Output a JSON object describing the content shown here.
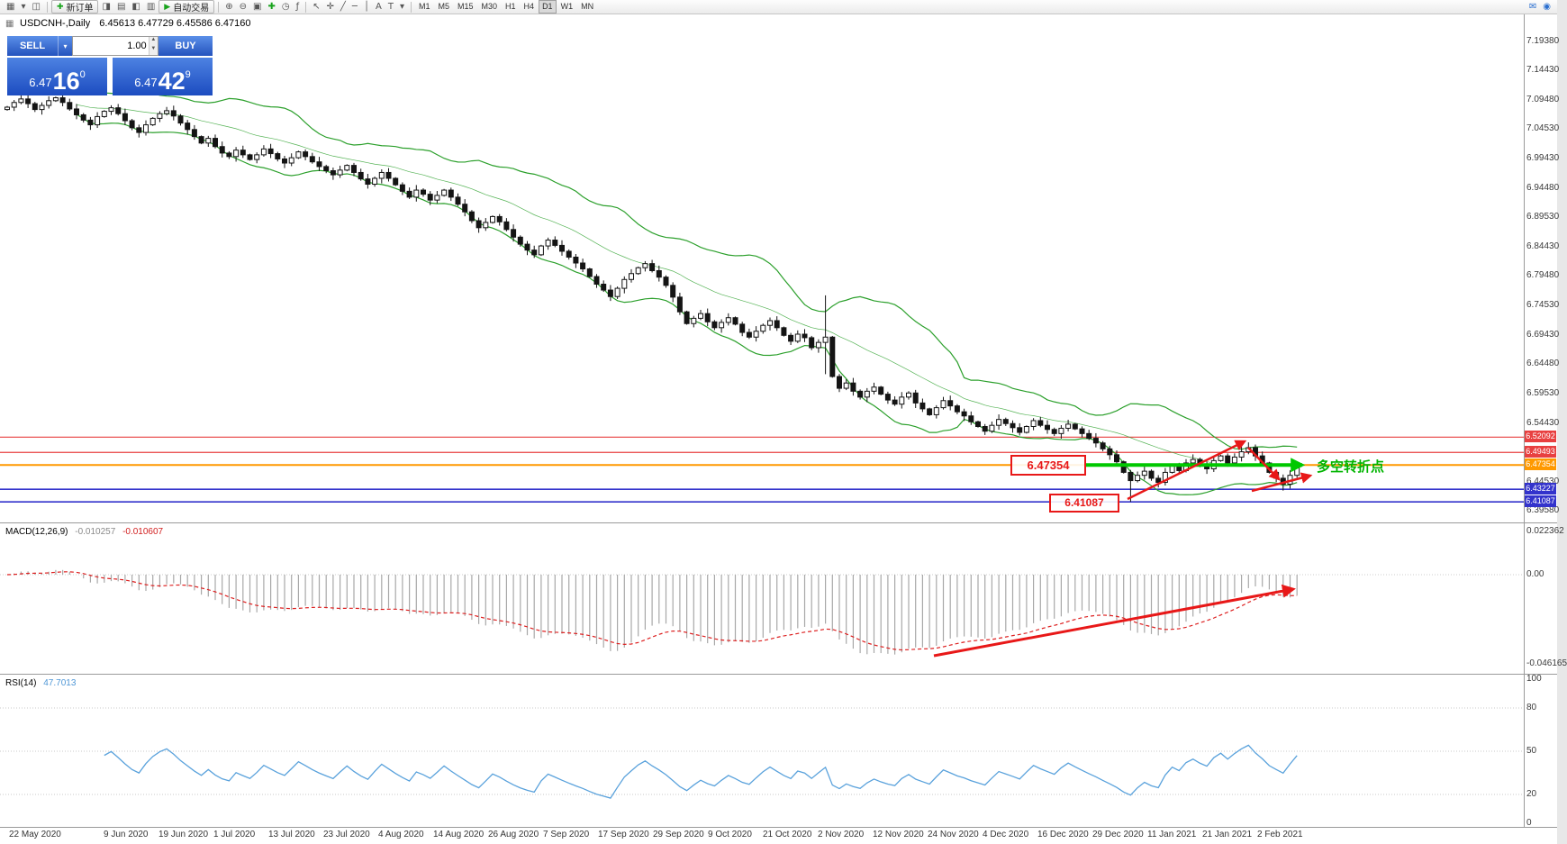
{
  "toolbar": {
    "items": [
      {
        "type": "icon",
        "glyph": "▦",
        "name": "new-chart-icon"
      },
      {
        "type": "icon",
        "glyph": "▾",
        "name": "chart-dropdown-icon"
      },
      {
        "type": "icon",
        "glyph": "◫",
        "name": "profiles-icon"
      },
      {
        "type": "sep"
      },
      {
        "type": "button",
        "glyph": "✚",
        "glyph_color": "#18a31c",
        "label": "新订单",
        "name": "new-order-button"
      },
      {
        "type": "icon",
        "glyph": "◨",
        "name": "market-watch-icon"
      },
      {
        "type": "icon",
        "glyph": "▤",
        "name": "data-window-icon"
      },
      {
        "type": "icon",
        "glyph": "◧",
        "name": "navigator-icon"
      },
      {
        "type": "icon",
        "glyph": "▥",
        "name": "terminal-icon"
      },
      {
        "type": "button",
        "glyph": "▶",
        "glyph_color": "#18a31c",
        "label": "自动交易",
        "name": "autotrading-button"
      },
      {
        "type": "sep"
      },
      {
        "type": "icon",
        "glyph": "⊕",
        "name": "zoom-in-icon"
      },
      {
        "type": "icon",
        "glyph": "⊖",
        "name": "zoom-out-icon"
      },
      {
        "type": "icon",
        "glyph": "▣",
        "name": "tile-windows-icon"
      },
      {
        "type": "icon",
        "glyph": "✚",
        "color": "#18a31c",
        "name": "new-window-icon"
      },
      {
        "type": "icon",
        "glyph": "◷",
        "name": "autoscroll-icon"
      },
      {
        "type": "icon",
        "glyph": "ƒ",
        "name": "indicators-icon"
      },
      {
        "type": "sep"
      },
      {
        "type": "icon",
        "glyph": "↖",
        "name": "cursor-icon"
      },
      {
        "type": "icon",
        "glyph": "✛",
        "name": "crosshair-icon"
      },
      {
        "type": "icon",
        "glyph": "╱",
        "name": "trendline-icon"
      },
      {
        "type": "icon",
        "glyph": "─",
        "name": "horizontal-line-icon"
      },
      {
        "type": "icon",
        "glyph": "│",
        "name": "vertical-line-icon"
      },
      {
        "type": "icon",
        "glyph": "A",
        "name": "text-tool-icon"
      },
      {
        "type": "icon",
        "glyph": "T",
        "name": "label-tool-icon"
      },
      {
        "type": "icon",
        "glyph": "▾",
        "name": "arrows-dropdown-icon"
      },
      {
        "type": "sep"
      },
      {
        "type": "tf",
        "label": "M1"
      },
      {
        "type": "tf",
        "label": "M5"
      },
      {
        "type": "tf",
        "label": "M15"
      },
      {
        "type": "tf",
        "label": "M30"
      },
      {
        "type": "tf",
        "label": "H1"
      },
      {
        "type": "tf",
        "label": "H4"
      },
      {
        "type": "tf",
        "label": "D1",
        "active": true
      },
      {
        "type": "tf",
        "label": "W1"
      },
      {
        "type": "tf",
        "label": "MN"
      },
      {
        "type": "spacer"
      },
      {
        "type": "icon",
        "glyph": "✉",
        "color": "#2a6fd0",
        "name": "mail-icon"
      },
      {
        "type": "icon",
        "glyph": "◉",
        "color": "#2a6fd0",
        "name": "community-icon"
      }
    ]
  },
  "chart_header": {
    "symbol": "USDCNH-,Daily",
    "ohlc": "6.45613 6.47729 6.45586 6.47160"
  },
  "trade_panel": {
    "sell_label": "SELL",
    "buy_label": "BUY",
    "volume": "1.00",
    "sell_price": {
      "prefix": "6.47",
      "big": "16",
      "sup": "0"
    },
    "buy_price": {
      "prefix": "6.47",
      "big": "42",
      "sup": "9"
    }
  },
  "price_scale": {
    "ticks": [
      "7.19380",
      "7.14430",
      "7.09480",
      "7.04530",
      "6.99430",
      "6.94480",
      "6.89530",
      "6.84430",
      "6.79480",
      "6.74530",
      "6.69430",
      "6.64480",
      "6.59530",
      "6.54430",
      "6.44530",
      "6.39580"
    ]
  },
  "macd_panel": {
    "label": "MACD(12,26,9)",
    "value_main": "-0.010257",
    "value_signal": "-0.010607",
    "scale": [
      "0.022362",
      "0.00",
      "-0.046165"
    ]
  },
  "rsi_panel": {
    "label": "RSI(14)",
    "value": "47.7013",
    "scale": [
      "100",
      "80",
      "50",
      "20",
      "0"
    ]
  },
  "x_axis": {
    "labels": [
      "22 May 2020",
      "9 Jun 2020",
      "19 Jun 2020",
      "1 Jul 2020",
      "13 Jul 2020",
      "23 Jul 2020",
      "4 Aug 2020",
      "14 Aug 2020",
      "26 Aug 2020",
      "7 Sep 2020",
      "17 Sep 2020",
      "29 Sep 2020",
      "9 Oct 2020",
      "21 Oct 2020",
      "2 Nov 2020",
      "12 Nov 2020",
      "24 Nov 2020",
      "4 Dec 2020",
      "16 Dec 2020",
      "29 Dec 2020",
      "11 Jan 2021",
      "21 Jan 2021",
      "2 Feb 2021"
    ]
  },
  "annotations": {
    "level_box_1": "6.47354",
    "level_box_2": "6.41087",
    "turning_point": "多空转折点"
  },
  "colors": {
    "bull": "#ffffff",
    "bear": "#141414",
    "bollinger": "#2ca02c",
    "level_red": "#e84040",
    "level_orange": "#ff9900",
    "level_blue": "#3333cc",
    "green_arrow": "#00c800",
    "red_arrow": "#e81818",
    "macd_hist": "#a8a8a8",
    "macd_signal": "#dd2020",
    "rsi_line": "#5aa2dc"
  },
  "chart_data": {
    "type": "candlestick",
    "symbol": "USDCNH-",
    "timeframe": "Daily",
    "ohlc_header": {
      "open": "6.45613",
      "high": "6.47729",
      "low": "6.45586",
      "close": "6.47160"
    },
    "price_axis": {
      "min": 6.3958,
      "max": 7.1938
    },
    "indicators": {
      "bollinger": {
        "period": 20,
        "deviation": 2
      },
      "macd": {
        "fast": 12,
        "slow": 26,
        "signal": 9,
        "main_value": -0.010257,
        "signal_value": -0.010607,
        "scale_max": 0.022362,
        "scale_min": -0.046165
      },
      "rsi": {
        "period": 14,
        "value": 47.7013,
        "levels": [
          100,
          80,
          50,
          20,
          0
        ]
      }
    },
    "levels": [
      {
        "price": 6.52092,
        "label": "6.52092",
        "color": "#e84040",
        "width": 1.2
      },
      {
        "price": 6.49493,
        "label": "6.49493",
        "color": "#e84040",
        "width": 1.2
      },
      {
        "price": 6.47354,
        "label": "6.47354",
        "color": "#ff9900",
        "width": 2
      },
      {
        "price": 6.43227,
        "label": "6.43227",
        "color": "#3333cc",
        "width": 1.6
      },
      {
        "price": 6.41087,
        "label": "6.41087",
        "color": "#3333cc",
        "width": 1.6
      }
    ],
    "candles": {
      "first_open": 7.078,
      "closes": [
        7.082,
        7.09,
        7.096,
        7.088,
        7.078,
        7.085,
        7.093,
        7.098,
        7.09,
        7.079,
        7.069,
        7.06,
        7.052,
        7.066,
        7.075,
        7.081,
        7.071,
        7.059,
        7.047,
        7.039,
        7.052,
        7.063,
        7.071,
        7.076,
        7.067,
        7.055,
        7.044,
        7.032,
        7.021,
        7.029,
        7.015,
        7.004,
        6.998,
        7.009,
        7.001,
        6.993,
        7.001,
        7.011,
        7.003,
        6.994,
        6.987,
        6.996,
        7.006,
        6.998,
        6.989,
        6.981,
        6.974,
        6.967,
        6.975,
        6.983,
        6.971,
        6.96,
        6.951,
        6.961,
        6.971,
        6.961,
        6.95,
        6.939,
        6.929,
        6.941,
        6.934,
        6.924,
        6.932,
        6.941,
        6.929,
        6.917,
        6.904,
        6.889,
        6.877,
        6.886,
        6.896,
        6.887,
        6.874,
        6.861,
        6.849,
        6.839,
        6.831,
        6.846,
        6.856,
        6.847,
        6.837,
        6.827,
        6.817,
        6.807,
        6.794,
        6.781,
        6.771,
        6.76,
        6.774,
        6.789,
        6.799,
        6.809,
        6.816,
        6.804,
        6.793,
        6.779,
        6.759,
        6.734,
        6.714,
        6.723,
        6.731,
        6.717,
        6.707,
        6.716,
        6.724,
        6.713,
        6.699,
        6.691,
        6.701,
        6.711,
        6.719,
        6.707,
        6.694,
        6.684,
        6.696,
        6.69,
        6.673,
        6.682,
        6.691,
        6.624,
        6.604,
        6.613,
        6.599,
        6.589,
        6.599,
        6.606,
        6.594,
        6.584,
        6.577,
        6.589,
        6.596,
        6.579,
        6.569,
        6.559,
        6.571,
        6.583,
        6.574,
        6.564,
        6.557,
        6.547,
        6.539,
        6.531,
        6.541,
        6.551,
        6.544,
        6.537,
        6.529,
        6.539,
        6.549,
        6.541,
        6.534,
        6.527,
        6.536,
        6.543,
        6.535,
        6.527,
        6.519,
        6.511,
        6.501,
        6.491,
        6.479,
        6.461,
        6.447,
        6.456,
        6.463,
        6.451,
        6.444,
        6.461,
        6.473,
        6.464,
        6.477,
        6.483,
        6.474,
        6.467,
        6.481,
        6.489,
        6.477,
        6.487,
        6.496,
        6.503,
        6.489,
        6.477,
        6.461,
        6.451,
        6.441,
        6.456,
        6.4716
      ],
      "wick_overrides": [
        {
          "index": 118,
          "high": 6.762,
          "low": 6.628
        },
        {
          "index": 162,
          "low": 6.411
        },
        {
          "index": 179,
          "high": 6.512
        },
        {
          "index": 184,
          "low": 6.43
        }
      ]
    }
  }
}
